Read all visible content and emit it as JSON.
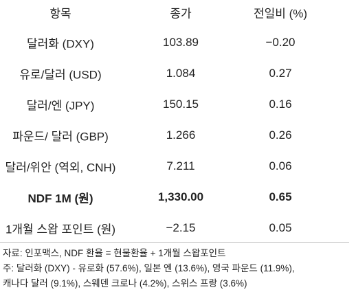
{
  "table": {
    "header": [
      "항목",
      "종가",
      "전일비 (%)"
    ],
    "rows": [
      [
        "달러화 (DXY)",
        "103.89",
        "−0.20"
      ],
      [
        "유로/달러 (USD)",
        "1.084",
        "0.27"
      ],
      [
        "달러/엔 (JPY)",
        "150.15",
        "0.16"
      ],
      [
        "파운드/ 달러 (GBP)",
        "1.266",
        "0.26"
      ],
      [
        "달러/위안 (역외, CNH)",
        "7.211",
        "0.06"
      ],
      [
        "NDF 1M (원)",
        "1,330.00",
        "0.65"
      ],
      [
        "1개월 스왑 포인트 (원)",
        "−2.15",
        "0.05"
      ]
    ]
  },
  "notes": [
    "자료: 인포맥스, NDF 환율 = 현물환율 + 1개월 스왑포인트",
    "주: 달러화 (DXY) - 유로화 (57.6%), 일본 엔 (13.6%), 영국 파운드 (11.9%),",
    "캐나다 달러 (9.1%), 스웨덴 크로나 (4.2%), 스위스 프랑 (3.6%)"
  ]
}
